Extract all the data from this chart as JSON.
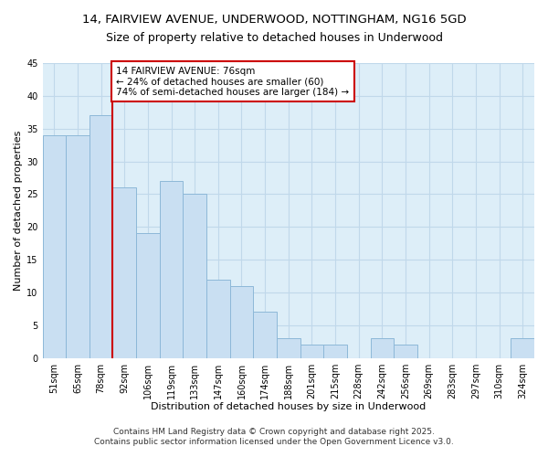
{
  "title": "14, FAIRVIEW AVENUE, UNDERWOOD, NOTTINGHAM, NG16 5GD",
  "subtitle": "Size of property relative to detached houses in Underwood",
  "xlabel": "Distribution of detached houses by size in Underwood",
  "ylabel": "Number of detached properties",
  "bar_labels": [
    "51sqm",
    "65sqm",
    "78sqm",
    "92sqm",
    "106sqm",
    "119sqm",
    "133sqm",
    "147sqm",
    "160sqm",
    "174sqm",
    "188sqm",
    "201sqm",
    "215sqm",
    "228sqm",
    "242sqm",
    "256sqm",
    "269sqm",
    "283sqm",
    "297sqm",
    "310sqm",
    "324sqm"
  ],
  "values": [
    34,
    34,
    37,
    26,
    19,
    27,
    25,
    12,
    11,
    7,
    3,
    2,
    2,
    0,
    3,
    2,
    0,
    0,
    0,
    0,
    3
  ],
  "bar_color": "#c9dff2",
  "bar_edge_color": "#8db8d8",
  "vline_color": "#cc0000",
  "vline_x": 2.5,
  "annotation_text": "14 FAIRVIEW AVENUE: 76sqm\n← 24% of detached houses are smaller (60)\n74% of semi-detached houses are larger (184) →",
  "annotation_box_color": "#ffffff",
  "annotation_box_edge": "#cc0000",
  "ylim": [
    0,
    45
  ],
  "yticks": [
    0,
    5,
    10,
    15,
    20,
    25,
    30,
    35,
    40,
    45
  ],
  "footer1": "Contains HM Land Registry data © Crown copyright and database right 2025.",
  "footer2": "Contains public sector information licensed under the Open Government Licence v3.0.",
  "bg_color": "#ddeef8",
  "grid_color": "#c0d8ea",
  "title_fontsize": 9.5,
  "xlabel_fontsize": 8,
  "ylabel_fontsize": 8,
  "tick_fontsize": 7,
  "annotation_fontsize": 7.5,
  "footer_fontsize": 6.5
}
